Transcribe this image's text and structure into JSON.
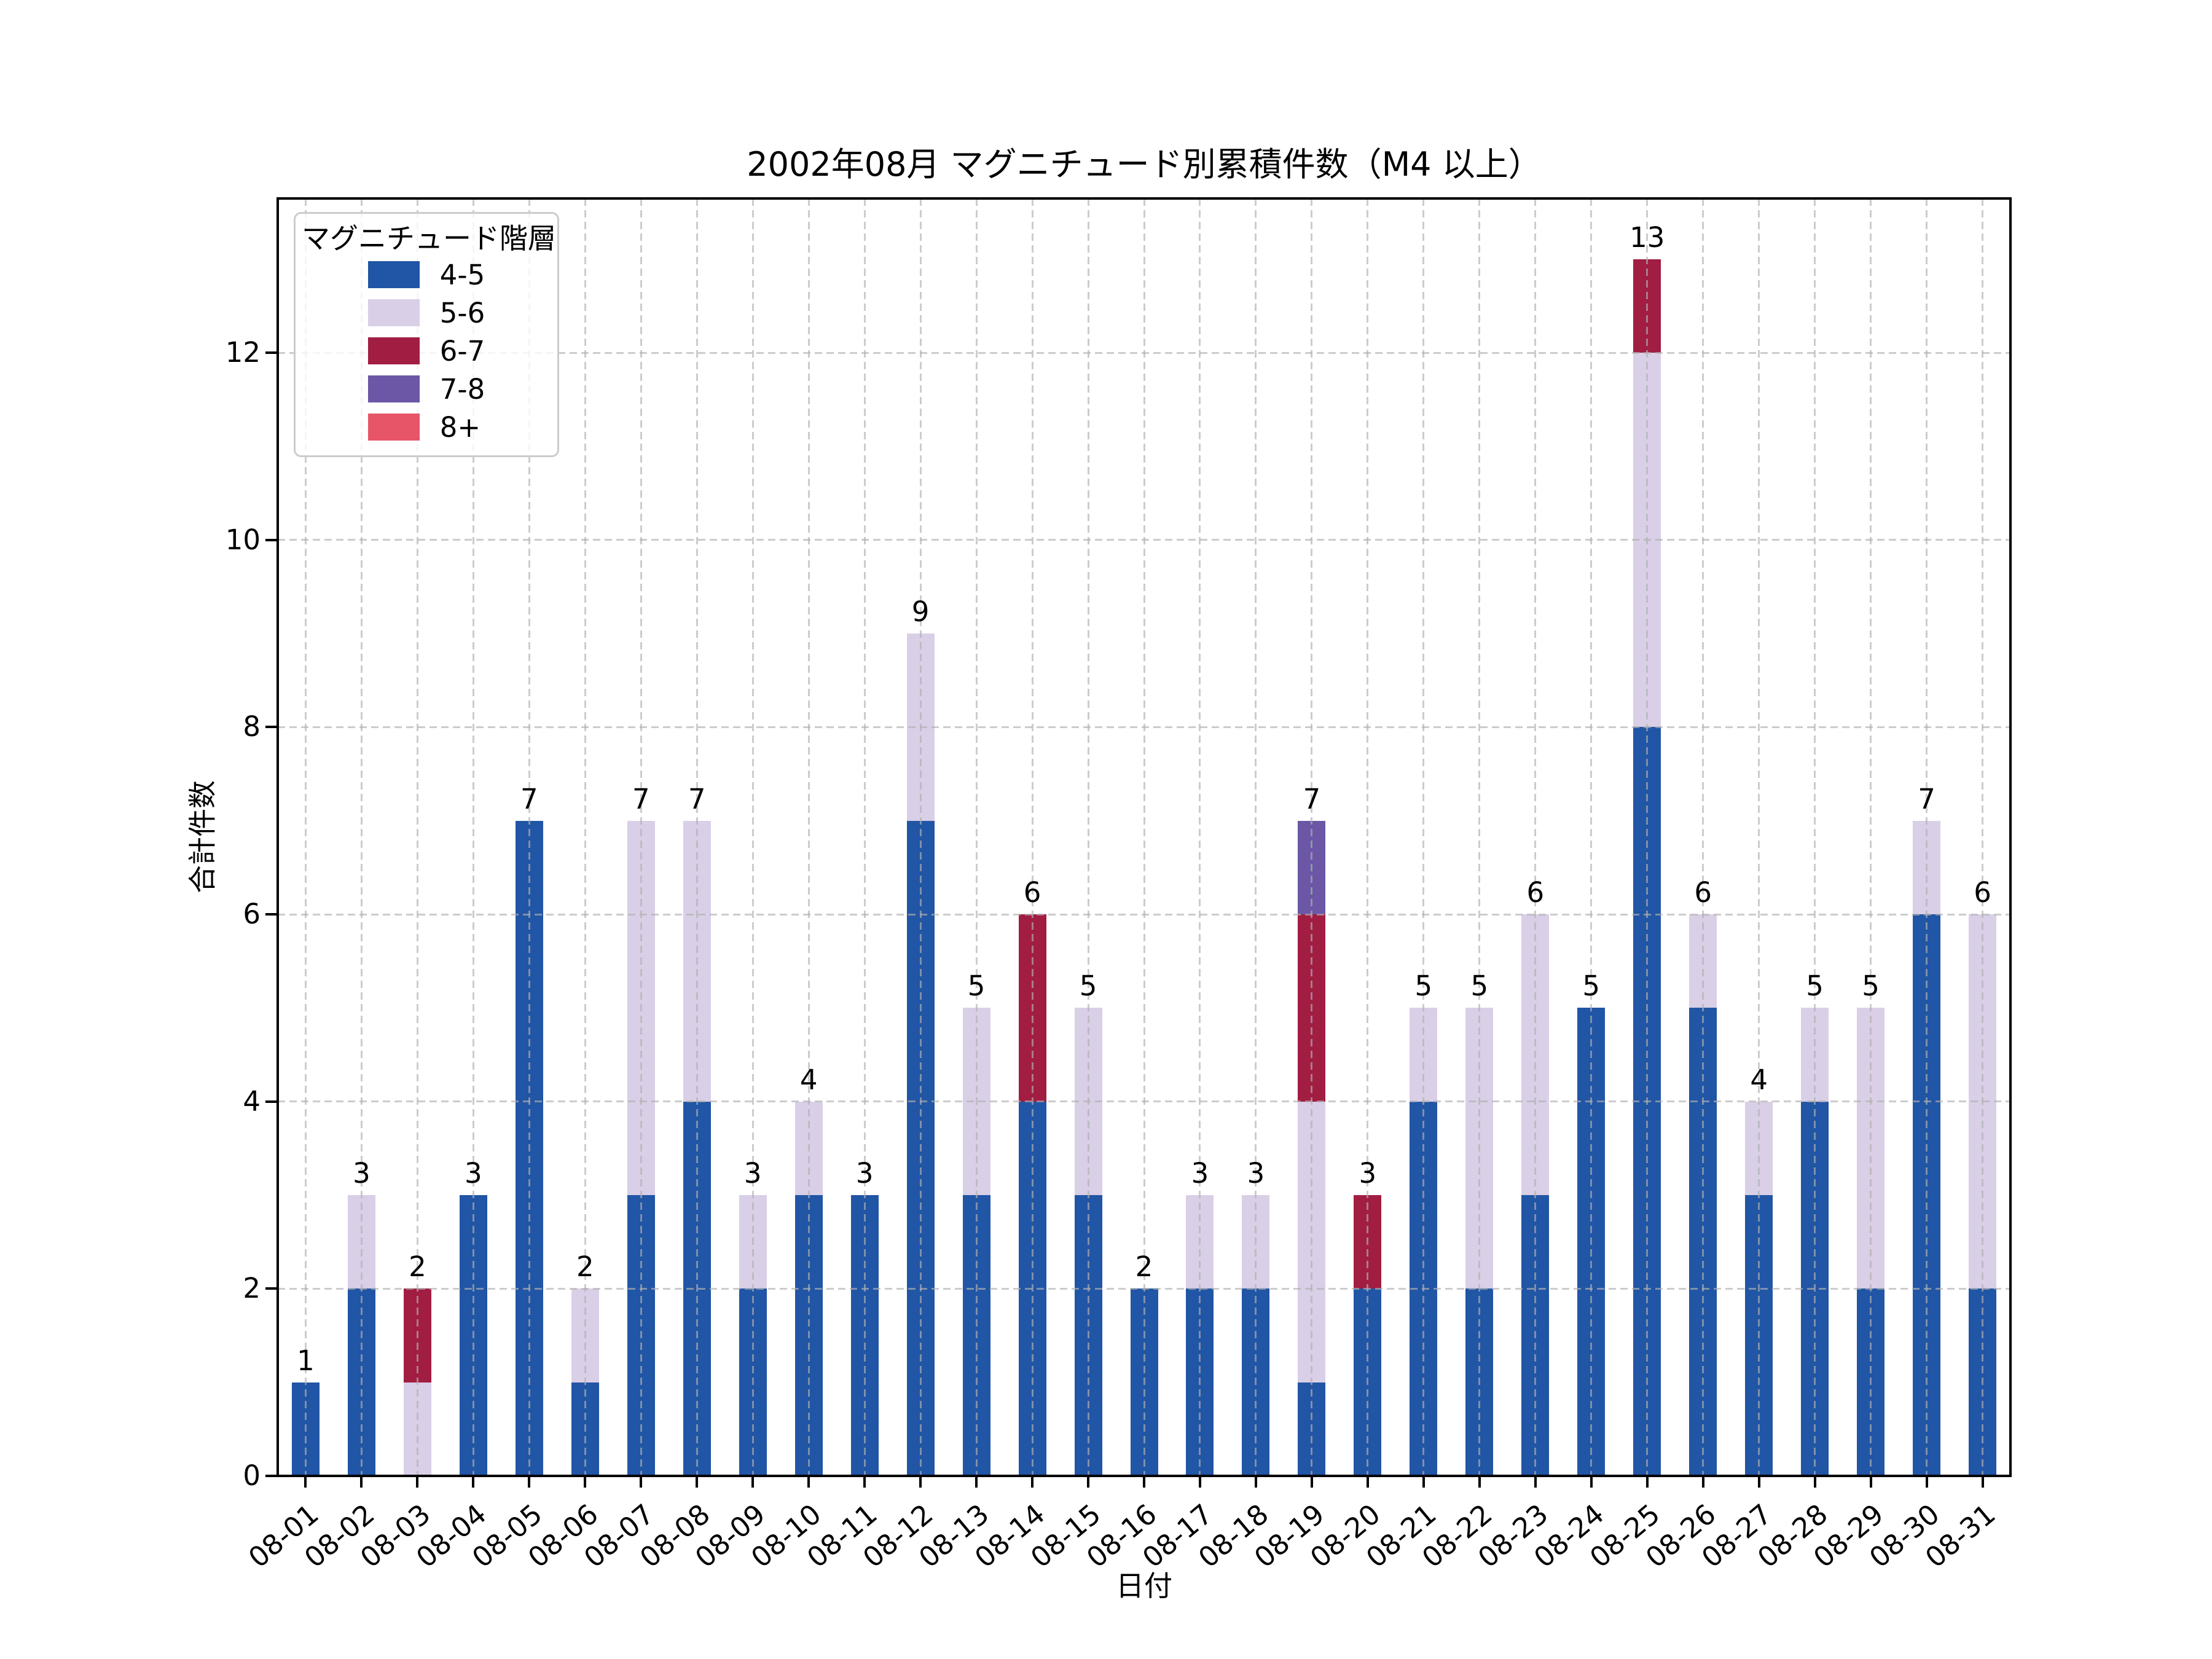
{
  "title": "2002年08月 マグニチュード別累積件数（M4 以上）",
  "axes": {
    "x_label": "日付",
    "y_label": "合計件数",
    "y_ticks": [
      0,
      2,
      4,
      6,
      8,
      10,
      12
    ]
  },
  "legend": {
    "title": "マグニチュード階層",
    "entries": [
      {
        "label": "4-5",
        "color": "#2155A5"
      },
      {
        "label": "5-6",
        "color": "#D9CFE7"
      },
      {
        "label": "6-7",
        "color": "#A21D42"
      },
      {
        "label": "7-8",
        "color": "#6B57A5"
      },
      {
        "label": "8+",
        "color": "#E75568"
      }
    ],
    "position": "upper left"
  },
  "colors": {
    "background": "#FFFFFF",
    "grid": "#B0B0B0",
    "axis": "#000000",
    "legend_border": "#CCCCCC"
  },
  "chart_data": {
    "type": "bar",
    "stacked": true,
    "title": "2002年08月 マグニチュード別累積件数（M4 以上）",
    "xlabel": "日付",
    "ylabel": "合計件数",
    "ylim": [
      0,
      13.65
    ],
    "grid": "dashed, drawn above bars",
    "legend_position": "upper left",
    "categories": [
      "08-01",
      "08-02",
      "08-03",
      "08-04",
      "08-05",
      "08-06",
      "08-07",
      "08-08",
      "08-09",
      "08-10",
      "08-11",
      "08-12",
      "08-13",
      "08-14",
      "08-15",
      "08-16",
      "08-17",
      "08-18",
      "08-19",
      "08-20",
      "08-21",
      "08-22",
      "08-23",
      "08-24",
      "08-25",
      "08-26",
      "08-27",
      "08-28",
      "08-29",
      "08-30",
      "08-31"
    ],
    "series": [
      {
        "name": "4-5",
        "color": "#2155A5",
        "values": [
          1,
          2,
          0,
          3,
          7,
          1,
          3,
          4,
          2,
          3,
          3,
          7,
          3,
          4,
          3,
          2,
          2,
          2,
          1,
          2,
          4,
          2,
          3,
          5,
          8,
          5,
          3,
          4,
          2,
          6,
          2
        ]
      },
      {
        "name": "5-6",
        "color": "#D9CFE7",
        "values": [
          0,
          1,
          1,
          0,
          0,
          1,
          4,
          3,
          1,
          1,
          0,
          2,
          2,
          0,
          2,
          0,
          1,
          1,
          3,
          0,
          1,
          3,
          3,
          0,
          4,
          1,
          1,
          1,
          3,
          1,
          4
        ]
      },
      {
        "name": "6-7",
        "color": "#A21D42",
        "values": [
          0,
          0,
          1,
          0,
          0,
          0,
          0,
          0,
          0,
          0,
          0,
          0,
          0,
          2,
          0,
          0,
          0,
          0,
          2,
          1,
          0,
          0,
          0,
          0,
          1,
          0,
          0,
          0,
          0,
          0,
          0
        ]
      },
      {
        "name": "7-8",
        "color": "#6B57A5",
        "values": [
          0,
          0,
          0,
          0,
          0,
          0,
          0,
          0,
          0,
          0,
          0,
          0,
          0,
          0,
          0,
          0,
          0,
          0,
          1,
          0,
          0,
          0,
          0,
          0,
          0,
          0,
          0,
          0,
          0,
          0,
          0
        ]
      },
      {
        "name": "8+",
        "color": "#E75568",
        "values": [
          0,
          0,
          0,
          0,
          0,
          0,
          0,
          0,
          0,
          0,
          0,
          0,
          0,
          0,
          0,
          0,
          0,
          0,
          0,
          0,
          0,
          0,
          0,
          0,
          0,
          0,
          0,
          0,
          0,
          0,
          0
        ]
      }
    ],
    "totals": [
      1,
      3,
      2,
      3,
      7,
      2,
      7,
      7,
      3,
      4,
      3,
      9,
      5,
      6,
      5,
      2,
      3,
      3,
      7,
      3,
      5,
      5,
      6,
      5,
      13,
      6,
      4,
      5,
      5,
      7,
      6
    ]
  }
}
